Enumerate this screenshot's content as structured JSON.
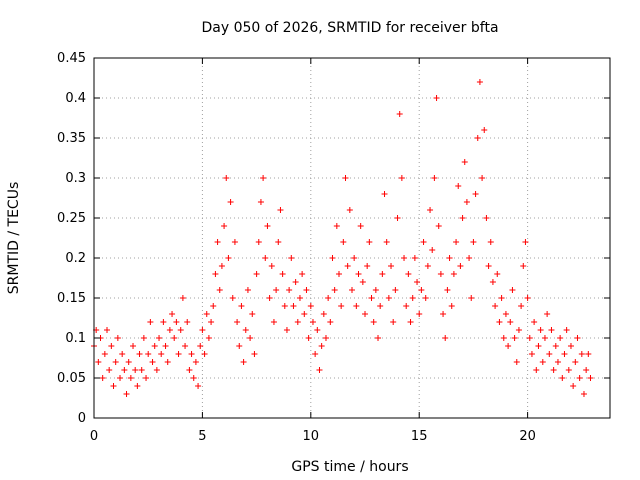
{
  "chart_data": {
    "type": "scatter",
    "title": "Day 050 of 2026, SRMTID for receiver bfta",
    "xlabel": "GPS time / hours",
    "ylabel": "SRMTID / TECUs",
    "xlim": [
      0,
      23.8
    ],
    "ylim": [
      0,
      0.45
    ],
    "x_ticks": [
      "0",
      "5",
      "10",
      "15",
      "20"
    ],
    "x_tick_values": [
      0,
      5,
      10,
      15,
      20
    ],
    "y_ticks": [
      "0",
      "0.05",
      "0.1",
      "0.15",
      "0.2",
      "0.25",
      "0.3",
      "0.35",
      "0.4",
      "0.45"
    ],
    "y_tick_values": [
      0,
      0.05,
      0.1,
      0.15,
      0.2,
      0.25,
      0.3,
      0.35,
      0.4,
      0.45
    ],
    "grid": true,
    "marker": "plus",
    "color": "#ff0000",
    "series": [
      {
        "points": [
          [
            0.0,
            0.09
          ],
          [
            0.1,
            0.11
          ],
          [
            0.2,
            0.07
          ],
          [
            0.3,
            0.1
          ],
          [
            0.4,
            0.05
          ],
          [
            0.5,
            0.08
          ],
          [
            0.6,
            0.11
          ],
          [
            0.7,
            0.06
          ],
          [
            0.8,
            0.09
          ],
          [
            0.9,
            0.04
          ],
          [
            1.0,
            0.07
          ],
          [
            1.1,
            0.1
          ],
          [
            1.2,
            0.05
          ],
          [
            1.3,
            0.08
          ],
          [
            1.4,
            0.06
          ],
          [
            1.5,
            0.03
          ],
          [
            1.6,
            0.07
          ],
          [
            1.7,
            0.05
          ],
          [
            1.8,
            0.09
          ],
          [
            1.9,
            0.06
          ],
          [
            2.0,
            0.04
          ],
          [
            2.1,
            0.08
          ],
          [
            2.2,
            0.06
          ],
          [
            2.3,
            0.1
          ],
          [
            2.4,
            0.05
          ],
          [
            2.5,
            0.08
          ],
          [
            2.6,
            0.12
          ],
          [
            2.7,
            0.07
          ],
          [
            2.8,
            0.09
          ],
          [
            2.9,
            0.06
          ],
          [
            3.0,
            0.1
          ],
          [
            3.1,
            0.08
          ],
          [
            3.2,
            0.12
          ],
          [
            3.3,
            0.09
          ],
          [
            3.4,
            0.07
          ],
          [
            3.5,
            0.11
          ],
          [
            3.6,
            0.13
          ],
          [
            3.7,
            0.1
          ],
          [
            3.8,
            0.12
          ],
          [
            3.9,
            0.08
          ],
          [
            4.0,
            0.11
          ],
          [
            4.1,
            0.15
          ],
          [
            4.2,
            0.09
          ],
          [
            4.3,
            0.12
          ],
          [
            4.4,
            0.06
          ],
          [
            4.5,
            0.08
          ],
          [
            4.6,
            0.05
          ],
          [
            4.7,
            0.07
          ],
          [
            4.8,
            0.04
          ],
          [
            4.9,
            0.09
          ],
          [
            5.0,
            0.11
          ],
          [
            5.1,
            0.08
          ],
          [
            5.2,
            0.13
          ],
          [
            5.3,
            0.1
          ],
          [
            5.4,
            0.12
          ],
          [
            5.5,
            0.14
          ],
          [
            5.6,
            0.18
          ],
          [
            5.7,
            0.22
          ],
          [
            5.8,
            0.16
          ],
          [
            5.9,
            0.19
          ],
          [
            6.0,
            0.24
          ],
          [
            6.1,
            0.3
          ],
          [
            6.2,
            0.2
          ],
          [
            6.3,
            0.27
          ],
          [
            6.4,
            0.15
          ],
          [
            6.5,
            0.22
          ],
          [
            6.6,
            0.12
          ],
          [
            6.7,
            0.09
          ],
          [
            6.8,
            0.14
          ],
          [
            6.9,
            0.07
          ],
          [
            7.0,
            0.11
          ],
          [
            7.1,
            0.16
          ],
          [
            7.2,
            0.1
          ],
          [
            7.3,
            0.13
          ],
          [
            7.4,
            0.08
          ],
          [
            7.5,
            0.18
          ],
          [
            7.6,
            0.22
          ],
          [
            7.7,
            0.27
          ],
          [
            7.8,
            0.3
          ],
          [
            7.9,
            0.2
          ],
          [
            8.0,
            0.24
          ],
          [
            8.1,
            0.15
          ],
          [
            8.2,
            0.19
          ],
          [
            8.3,
            0.12
          ],
          [
            8.4,
            0.16
          ],
          [
            8.5,
            0.22
          ],
          [
            8.6,
            0.26
          ],
          [
            8.7,
            0.18
          ],
          [
            8.8,
            0.14
          ],
          [
            8.9,
            0.11
          ],
          [
            9.0,
            0.16
          ],
          [
            9.1,
            0.2
          ],
          [
            9.2,
            0.14
          ],
          [
            9.3,
            0.17
          ],
          [
            9.4,
            0.12
          ],
          [
            9.5,
            0.15
          ],
          [
            9.6,
            0.18
          ],
          [
            9.7,
            0.13
          ],
          [
            9.8,
            0.16
          ],
          [
            9.9,
            0.1
          ],
          [
            10.0,
            0.14
          ],
          [
            10.1,
            0.12
          ],
          [
            10.2,
            0.08
          ],
          [
            10.3,
            0.11
          ],
          [
            10.4,
            0.06
          ],
          [
            10.5,
            0.09
          ],
          [
            10.6,
            0.13
          ],
          [
            10.7,
            0.1
          ],
          [
            10.8,
            0.15
          ],
          [
            10.9,
            0.12
          ],
          [
            11.0,
            0.2
          ],
          [
            11.1,
            0.16
          ],
          [
            11.2,
            0.24
          ],
          [
            11.3,
            0.18
          ],
          [
            11.4,
            0.14
          ],
          [
            11.5,
            0.22
          ],
          [
            11.6,
            0.3
          ],
          [
            11.7,
            0.19
          ],
          [
            11.8,
            0.26
          ],
          [
            11.9,
            0.16
          ],
          [
            12.0,
            0.2
          ],
          [
            12.1,
            0.14
          ],
          [
            12.2,
            0.18
          ],
          [
            12.3,
            0.24
          ],
          [
            12.4,
            0.17
          ],
          [
            12.5,
            0.13
          ],
          [
            12.6,
            0.19
          ],
          [
            12.7,
            0.22
          ],
          [
            12.8,
            0.15
          ],
          [
            12.9,
            0.12
          ],
          [
            13.0,
            0.16
          ],
          [
            13.1,
            0.1
          ],
          [
            13.2,
            0.14
          ],
          [
            13.3,
            0.18
          ],
          [
            13.4,
            0.28
          ],
          [
            13.5,
            0.22
          ],
          [
            13.6,
            0.15
          ],
          [
            13.7,
            0.19
          ],
          [
            13.8,
            0.12
          ],
          [
            13.9,
            0.16
          ],
          [
            14.0,
            0.25
          ],
          [
            14.1,
            0.38
          ],
          [
            14.2,
            0.3
          ],
          [
            14.3,
            0.2
          ],
          [
            14.4,
            0.14
          ],
          [
            14.5,
            0.18
          ],
          [
            14.6,
            0.12
          ],
          [
            14.7,
            0.15
          ],
          [
            14.8,
            0.2
          ],
          [
            14.9,
            0.17
          ],
          [
            15.0,
            0.13
          ],
          [
            15.1,
            0.16
          ],
          [
            15.2,
            0.22
          ],
          [
            15.3,
            0.15
          ],
          [
            15.4,
            0.19
          ],
          [
            15.5,
            0.26
          ],
          [
            15.6,
            0.21
          ],
          [
            15.7,
            0.3
          ],
          [
            15.8,
            0.4
          ],
          [
            15.9,
            0.24
          ],
          [
            16.0,
            0.18
          ],
          [
            16.1,
            0.13
          ],
          [
            16.2,
            0.1
          ],
          [
            16.3,
            0.16
          ],
          [
            16.4,
            0.2
          ],
          [
            16.5,
            0.14
          ],
          [
            16.6,
            0.18
          ],
          [
            16.7,
            0.22
          ],
          [
            16.8,
            0.29
          ],
          [
            16.9,
            0.19
          ],
          [
            17.0,
            0.25
          ],
          [
            17.1,
            0.32
          ],
          [
            17.2,
            0.27
          ],
          [
            17.3,
            0.2
          ],
          [
            17.4,
            0.15
          ],
          [
            17.5,
            0.22
          ],
          [
            17.6,
            0.28
          ],
          [
            17.7,
            0.35
          ],
          [
            17.8,
            0.42
          ],
          [
            17.9,
            0.3
          ],
          [
            18.0,
            0.36
          ],
          [
            18.1,
            0.25
          ],
          [
            18.2,
            0.19
          ],
          [
            18.3,
            0.22
          ],
          [
            18.4,
            0.17
          ],
          [
            18.5,
            0.14
          ],
          [
            18.6,
            0.18
          ],
          [
            18.7,
            0.12
          ],
          [
            18.8,
            0.15
          ],
          [
            18.9,
            0.1
          ],
          [
            19.0,
            0.13
          ],
          [
            19.1,
            0.09
          ],
          [
            19.2,
            0.12
          ],
          [
            19.3,
            0.16
          ],
          [
            19.4,
            0.1
          ],
          [
            19.5,
            0.07
          ],
          [
            19.6,
            0.11
          ],
          [
            19.7,
            0.14
          ],
          [
            19.8,
            0.19
          ],
          [
            19.9,
            0.22
          ],
          [
            20.0,
            0.15
          ],
          [
            20.1,
            0.1
          ],
          [
            20.2,
            0.08
          ],
          [
            20.3,
            0.12
          ],
          [
            20.4,
            0.06
          ],
          [
            20.5,
            0.09
          ],
          [
            20.6,
            0.11
          ],
          [
            20.7,
            0.07
          ],
          [
            20.8,
            0.1
          ],
          [
            20.9,
            0.13
          ],
          [
            21.0,
            0.08
          ],
          [
            21.1,
            0.11
          ],
          [
            21.2,
            0.06
          ],
          [
            21.3,
            0.09
          ],
          [
            21.4,
            0.07
          ],
          [
            21.5,
            0.1
          ],
          [
            21.6,
            0.05
          ],
          [
            21.7,
            0.08
          ],
          [
            21.8,
            0.11
          ],
          [
            21.9,
            0.06
          ],
          [
            22.0,
            0.09
          ],
          [
            22.1,
            0.04
          ],
          [
            22.2,
            0.07
          ],
          [
            22.3,
            0.1
          ],
          [
            22.4,
            0.05
          ],
          [
            22.5,
            0.08
          ],
          [
            22.6,
            0.03
          ],
          [
            22.7,
            0.06
          ],
          [
            22.8,
            0.08
          ],
          [
            22.9,
            0.05
          ]
        ]
      }
    ]
  }
}
